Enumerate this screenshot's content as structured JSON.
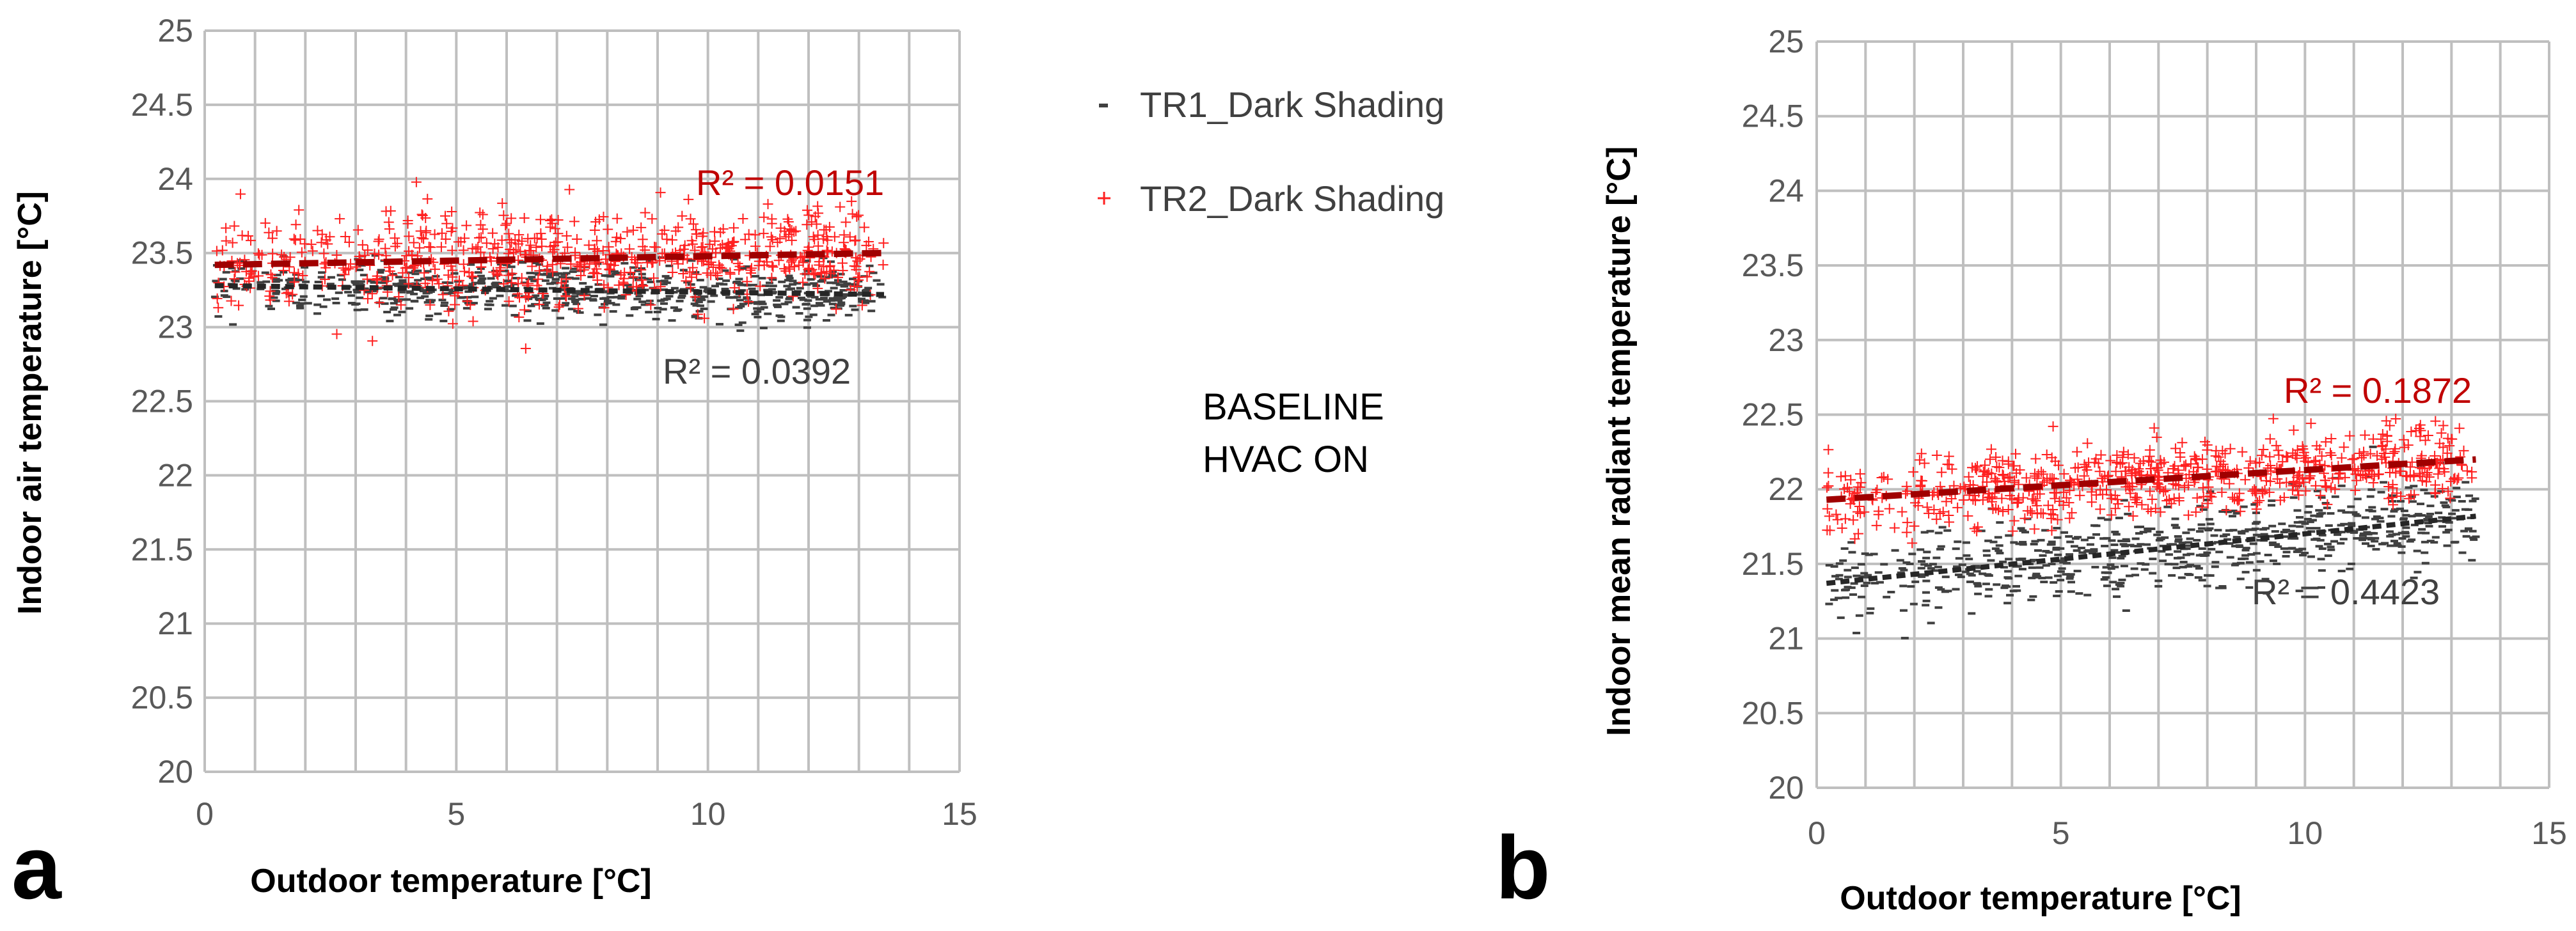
{
  "legend": {
    "entries": [
      {
        "name": "TR1_Dark Shading",
        "color": "#404040",
        "marker": "dash"
      },
      {
        "name": "TR2_Dark Shading",
        "color": "#ff2020",
        "marker": "cross"
      }
    ]
  },
  "annotation": {
    "line1": "BASELINE",
    "line2": "HVAC ON"
  },
  "chart_data": [
    {
      "type": "scatter",
      "panel_label": "a",
      "xlabel": "Outdoor temperature   [°C]",
      "ylabel": "Indoor air temperature [°C]",
      "xlim": [
        0,
        15
      ],
      "ylim": [
        20,
        25
      ],
      "x_ticks": [
        "0",
        "5",
        "10",
        "15"
      ],
      "y_ticks": [
        "20",
        "20.5",
        "21",
        "21.5",
        "22",
        "22.5",
        "23",
        "23.5",
        "24",
        "24.5",
        "25"
      ],
      "grid": true,
      "x_range_of_points": [
        0.2,
        13.5
      ],
      "series": [
        {
          "name": "TR1_Dark Shading",
          "color": "#404040",
          "trend": {
            "x": [
              0.2,
              13.5
            ],
            "y": [
              23.28,
              23.22
            ]
          },
          "spread": 0.09,
          "r2": "R² = 0.0392",
          "r2_color": "#404040"
        },
        {
          "name": "TR2_Dark Shading",
          "color": "#ff2020",
          "trend": {
            "x": [
              0.2,
              13.5
            ],
            "y": [
              23.42,
              23.5
            ]
          },
          "spread": 0.16,
          "r2": "R² = 0.0151",
          "r2_color": "#c00000"
        }
      ]
    },
    {
      "type": "scatter",
      "panel_label": "b",
      "xlabel": "Outdoor temperature   [°C]",
      "ylabel": "Indoor mean radiant temperature [°C]",
      "xlim": [
        0,
        15
      ],
      "ylim": [
        20,
        25
      ],
      "x_ticks": [
        "0",
        "5",
        "10",
        "15"
      ],
      "y_ticks": [
        "20",
        "20.5",
        "21",
        "21.5",
        "22",
        "22.5",
        "23",
        "23.5",
        "24",
        "24.5",
        "25"
      ],
      "grid": true,
      "x_range_of_points": [
        0.2,
        13.5
      ],
      "series": [
        {
          "name": "TR1_Dark Shading",
          "color": "#404040",
          "trend": {
            "x": [
              0.2,
              13.5
            ],
            "y": [
              21.37,
              21.82
            ]
          },
          "spread": 0.14,
          "r2": "R² = 0.4423",
          "r2_color": "#404040"
        },
        {
          "name": "TR2_Dark Shading",
          "color": "#ff2020",
          "trend": {
            "x": [
              0.2,
              13.5
            ],
            "y": [
              21.93,
              22.2
            ]
          },
          "spread": 0.12,
          "r2": "R² = 0.1872",
          "r2_color": "#c00000"
        }
      ]
    }
  ]
}
